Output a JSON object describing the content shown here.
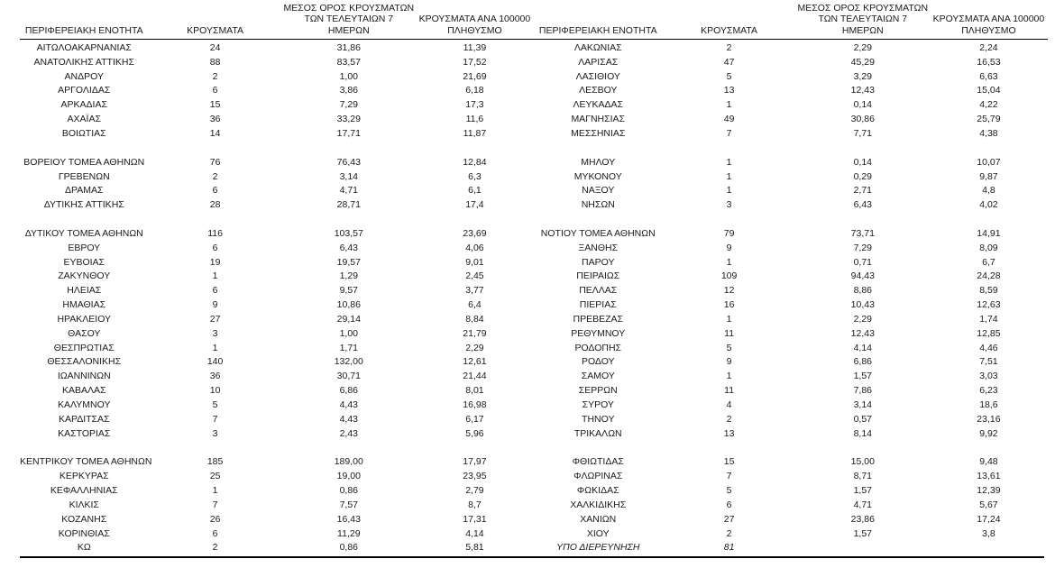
{
  "colors": {
    "text": "#1a1a1a",
    "rule": "#000000",
    "background": "#ffffff"
  },
  "headers": {
    "region_unit": "ΠΕΡΙΦΕΡΕΙΑΚΗ ΕΝΟΤΗΤΑ",
    "cases": "ΚΡΟΥΣΜΑΤΑ",
    "avg7_line1": "ΜΕΣΟΣ ΟΡΟΣ ΚΡΟΥΣΜΑΤΩΝ",
    "avg7_line2": "ΤΩΝ ΤΕΛΕΥΤΑΙΩΝ 7",
    "avg7_line3": "ΗΜΕΡΩΝ",
    "per100k_line1": "ΚΡΟΥΣΜΑΤΑ ΑΝΑ 100000",
    "per100k_line2": "ΠΛΗΘΥΣΜΟ"
  },
  "left_table": {
    "groups": [
      {
        "rows": [
          {
            "name": "ΑΙΤΩΛΟΑΚΑΡΝΑΝΙΑΣ",
            "cases": "24",
            "avg7": "31,86",
            "per100k": "11,39"
          },
          {
            "name": "ΑΝΑΤΟΛΙΚΗΣ ΑΤΤΙΚΗΣ",
            "cases": "88",
            "avg7": "83,57",
            "per100k": "17,52"
          },
          {
            "name": "ΑΝΔΡΟΥ",
            "cases": "2",
            "avg7": "1,00",
            "per100k": "21,69"
          },
          {
            "name": "ΑΡΓΟΛΙΔΑΣ",
            "cases": "6",
            "avg7": "3,86",
            "per100k": "6,18"
          },
          {
            "name": "ΑΡΚΑΔΙΑΣ",
            "cases": "15",
            "avg7": "7,29",
            "per100k": "17,3"
          },
          {
            "name": "ΑΧΑΪΑΣ",
            "cases": "36",
            "avg7": "33,29",
            "per100k": "11,6"
          },
          {
            "name": "ΒΟΙΩΤΙΑΣ",
            "cases": "14",
            "avg7": "17,71",
            "per100k": "11,87"
          }
        ]
      },
      {
        "rows": [
          {
            "name": "ΒΟΡΕΙΟΥ ΤΟΜΕΑ ΑΘΗΝΩΝ",
            "cases": "76",
            "avg7": "76,43",
            "per100k": "12,84"
          },
          {
            "name": "ΓΡΕΒΕΝΩΝ",
            "cases": "2",
            "avg7": "3,14",
            "per100k": "6,3"
          },
          {
            "name": "ΔΡΑΜΑΣ",
            "cases": "6",
            "avg7": "4,71",
            "per100k": "6,1"
          },
          {
            "name": "ΔΥΤΙΚΗΣ ΑΤΤΙΚΗΣ",
            "cases": "28",
            "avg7": "28,71",
            "per100k": "17,4"
          }
        ]
      },
      {
        "rows": [
          {
            "name": "ΔΥΤΙΚΟΥ ΤΟΜΕΑ ΑΘΗΝΩΝ",
            "cases": "116",
            "avg7": "103,57",
            "per100k": "23,69"
          },
          {
            "name": "ΕΒΡΟΥ",
            "cases": "6",
            "avg7": "6,43",
            "per100k": "4,06"
          },
          {
            "name": "ΕΥΒΟΙΑΣ",
            "cases": "19",
            "avg7": "19,57",
            "per100k": "9,01"
          },
          {
            "name": "ΖΑΚΥΝΘΟΥ",
            "cases": "1",
            "avg7": "1,29",
            "per100k": "2,45"
          },
          {
            "name": "ΗΛΕΙΑΣ",
            "cases": "6",
            "avg7": "9,57",
            "per100k": "3,77"
          },
          {
            "name": "ΗΜΑΘΙΑΣ",
            "cases": "9",
            "avg7": "10,86",
            "per100k": "6,4"
          },
          {
            "name": "ΗΡΑΚΛΕΙΟΥ",
            "cases": "27",
            "avg7": "29,14",
            "per100k": "8,84"
          },
          {
            "name": "ΘΑΣΟΥ",
            "cases": "3",
            "avg7": "1,00",
            "per100k": "21,79"
          },
          {
            "name": "ΘΕΣΠΡΩΤΙΑΣ",
            "cases": "1",
            "avg7": "1,71",
            "per100k": "2,29"
          },
          {
            "name": "ΘΕΣΣΑΛΟΝΙΚΗΣ",
            "cases": "140",
            "avg7": "132,00",
            "per100k": "12,61"
          },
          {
            "name": "ΙΩΑΝΝΙΝΩΝ",
            "cases": "36",
            "avg7": "30,71",
            "per100k": "21,44"
          },
          {
            "name": "ΚΑΒΑΛΑΣ",
            "cases": "10",
            "avg7": "6,86",
            "per100k": "8,01"
          },
          {
            "name": "ΚΑΛΥΜΝΟΥ",
            "cases": "5",
            "avg7": "4,43",
            "per100k": "16,98"
          },
          {
            "name": "ΚΑΡΔΙΤΣΑΣ",
            "cases": "7",
            "avg7": "4,43",
            "per100k": "6,17"
          },
          {
            "name": "ΚΑΣΤΟΡΙΑΣ",
            "cases": "3",
            "avg7": "2,43",
            "per100k": "5,96"
          }
        ]
      },
      {
        "rows": [
          {
            "name": "ΚΕΝΤΡΙΚΟΥ ΤΟΜΕΑ ΑΘΗΝΩΝ",
            "cases": "185",
            "avg7": "189,00",
            "per100k": "17,97"
          },
          {
            "name": "ΚΕΡΚΥΡΑΣ",
            "cases": "25",
            "avg7": "19,00",
            "per100k": "23,95"
          },
          {
            "name": "ΚΕΦΑΛΛΗΝΙΑΣ",
            "cases": "1",
            "avg7": "0,86",
            "per100k": "2,79"
          },
          {
            "name": "ΚΙΛΚΙΣ",
            "cases": "7",
            "avg7": "7,57",
            "per100k": "8,7"
          },
          {
            "name": "ΚΟΖΑΝΗΣ",
            "cases": "26",
            "avg7": "16,43",
            "per100k": "17,31"
          },
          {
            "name": "ΚΟΡΙΝΘΙΑΣ",
            "cases": "6",
            "avg7": "11,29",
            "per100k": "4,14"
          },
          {
            "name": "ΚΩ",
            "cases": "2",
            "avg7": "0,86",
            "per100k": "5,81"
          }
        ]
      }
    ]
  },
  "right_table": {
    "groups": [
      {
        "rows": [
          {
            "name": "ΛΑΚΩΝΙΑΣ",
            "cases": "2",
            "avg7": "2,29",
            "per100k": "2,24"
          },
          {
            "name": "ΛΑΡΙΣΑΣ",
            "cases": "47",
            "avg7": "45,29",
            "per100k": "16,53"
          },
          {
            "name": "ΛΑΣΙΘΙΟΥ",
            "cases": "5",
            "avg7": "3,29",
            "per100k": "6,63"
          },
          {
            "name": "ΛΕΣΒΟΥ",
            "cases": "13",
            "avg7": "12,43",
            "per100k": "15,04"
          },
          {
            "name": "ΛΕΥΚΑΔΑΣ",
            "cases": "1",
            "avg7": "0,14",
            "per100k": "4,22"
          },
          {
            "name": "ΜΑΓΝΗΣΙΑΣ",
            "cases": "49",
            "avg7": "30,86",
            "per100k": "25,79"
          },
          {
            "name": "ΜΕΣΣΗΝΙΑΣ",
            "cases": "7",
            "avg7": "7,71",
            "per100k": "4,38"
          }
        ]
      },
      {
        "rows": [
          {
            "name": "ΜΗΛΟΥ",
            "cases": "1",
            "avg7": "0,14",
            "per100k": "10,07"
          },
          {
            "name": "ΜΥΚΟΝΟΥ",
            "cases": "1",
            "avg7": "0,29",
            "per100k": "9,87"
          },
          {
            "name": "ΝΑΞΟΥ",
            "cases": "1",
            "avg7": "2,71",
            "per100k": "4,8"
          },
          {
            "name": "ΝΗΣΩΝ",
            "cases": "3",
            "avg7": "6,43",
            "per100k": "4,02"
          }
        ]
      },
      {
        "rows": [
          {
            "name": "ΝΟΤΙΟΥ ΤΟΜΕΑ ΑΘΗΝΩΝ",
            "cases": "79",
            "avg7": "73,71",
            "per100k": "14,91"
          },
          {
            "name": "ΞΑΝΘΗΣ",
            "cases": "9",
            "avg7": "7,29",
            "per100k": "8,09"
          },
          {
            "name": "ΠΑΡΟΥ",
            "cases": "1",
            "avg7": "0,71",
            "per100k": "6,7"
          },
          {
            "name": "ΠΕΙΡΑΙΩΣ",
            "cases": "109",
            "avg7": "94,43",
            "per100k": "24,28"
          },
          {
            "name": "ΠΕΛΛΑΣ",
            "cases": "12",
            "avg7": "8,86",
            "per100k": "8,59"
          },
          {
            "name": "ΠΙΕΡΙΑΣ",
            "cases": "16",
            "avg7": "10,43",
            "per100k": "12,63"
          },
          {
            "name": "ΠΡΕΒΕΖΑΣ",
            "cases": "1",
            "avg7": "2,29",
            "per100k": "1,74"
          },
          {
            "name": "ΡΕΘΥΜΝΟΥ",
            "cases": "11",
            "avg7": "12,43",
            "per100k": "12,85"
          },
          {
            "name": "ΡΟΔΟΠΗΣ",
            "cases": "5",
            "avg7": "4,14",
            "per100k": "4,46"
          },
          {
            "name": "ΡΟΔΟΥ",
            "cases": "9",
            "avg7": "6,86",
            "per100k": "7,51"
          },
          {
            "name": "ΣΑΜΟΥ",
            "cases": "1",
            "avg7": "1,57",
            "per100k": "3,03"
          },
          {
            "name": "ΣΕΡΡΩΝ",
            "cases": "11",
            "avg7": "7,86",
            "per100k": "6,23"
          },
          {
            "name": "ΣΥΡΟΥ",
            "cases": "4",
            "avg7": "3,14",
            "per100k": "18,6"
          },
          {
            "name": "ΤΗΝΟΥ",
            "cases": "2",
            "avg7": "0,57",
            "per100k": "23,16"
          },
          {
            "name": "ΤΡΙΚΑΛΩΝ",
            "cases": "13",
            "avg7": "8,14",
            "per100k": "9,92"
          }
        ]
      },
      {
        "rows": [
          {
            "name": "ΦΘΙΩΤΙΔΑΣ",
            "cases": "15",
            "avg7": "15,00",
            "per100k": "9,48"
          },
          {
            "name": "ΦΛΩΡΙΝΑΣ",
            "cases": "7",
            "avg7": "8,71",
            "per100k": "13,61"
          },
          {
            "name": "ΦΩΚΙΔΑΣ",
            "cases": "5",
            "avg7": "1,57",
            "per100k": "12,39"
          },
          {
            "name": "ΧΑΛΚΙΔΙΚΗΣ",
            "cases": "6",
            "avg7": "4,71",
            "per100k": "5,67"
          },
          {
            "name": "ΧΑΝΙΩΝ",
            "cases": "27",
            "avg7": "23,86",
            "per100k": "17,24"
          },
          {
            "name": "ΧΙΟΥ",
            "cases": "2",
            "avg7": "1,57",
            "per100k": "3,8"
          },
          {
            "name": "ΥΠΟ ΔΙΕΡΕΥΝΗΣΗ",
            "cases": "81",
            "avg7": "",
            "per100k": "",
            "italic": true
          }
        ]
      }
    ]
  }
}
